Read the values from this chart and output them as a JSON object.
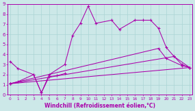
{
  "xlabel": "Windchill (Refroidissement éolien,°C)",
  "bg_color": "#cce8e8",
  "grid_color": "#aad4d4",
  "line_color": "#aa00aa",
  "xmin": 0,
  "xmax": 23,
  "ymin": 0,
  "ymax": 9,
  "line_main_x": [
    0,
    1,
    3,
    4,
    5,
    7,
    8,
    9,
    10,
    11,
    13,
    14,
    16,
    17,
    18,
    19,
    20,
    21,
    22,
    23
  ],
  "line_main_y": [
    3.3,
    2.6,
    2.0,
    0.2,
    2.0,
    3.0,
    5.9,
    7.1,
    8.8,
    7.1,
    7.4,
    6.5,
    7.4,
    7.4,
    7.4,
    6.6,
    4.7,
    3.8,
    3.0,
    2.7
  ],
  "line2_x": [
    0,
    1,
    3,
    4,
    5,
    6,
    7
  ],
  "line2_y": [
    1.1,
    1.3,
    2.0,
    0.2,
    1.8,
    1.9,
    2.1
  ],
  "line3_x": [
    0,
    19,
    20,
    22,
    23
  ],
  "line3_y": [
    1.1,
    4.6,
    3.6,
    2.9,
    2.7
  ],
  "line4_x": [
    0,
    21,
    23
  ],
  "line4_y": [
    1.1,
    3.8,
    2.7
  ],
  "line5_x": [
    0,
    23
  ],
  "line5_y": [
    1.1,
    2.7
  ]
}
